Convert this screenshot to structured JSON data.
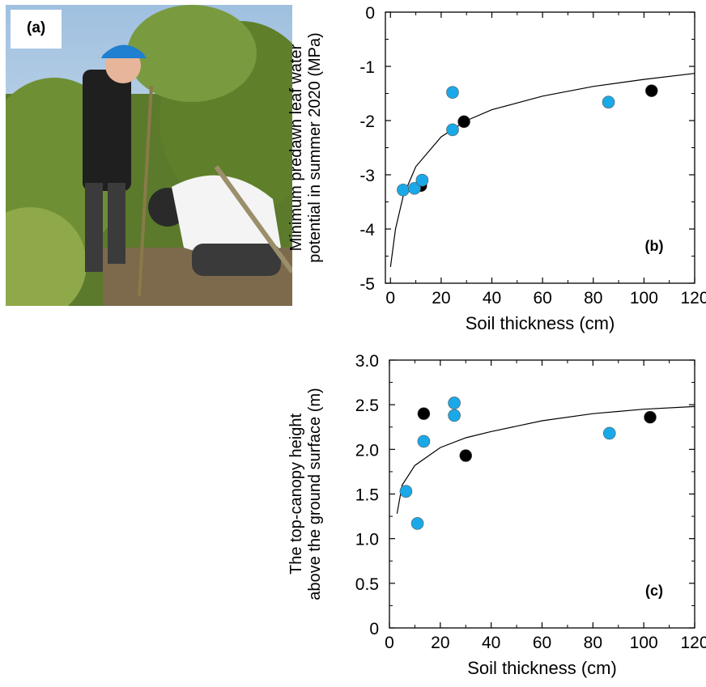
{
  "photo": {
    "label": "(a)"
  },
  "chart_data": [
    {
      "type": "scatter",
      "panel_label": "(b)",
      "xlabel": "Soil thickness (cm)",
      "ylabel": [
        "Minimum predawn leaf water",
        "potential in summer 2020 (MPa)"
      ],
      "xlim": [
        -2,
        120
      ],
      "ylim": [
        -5,
        0
      ],
      "xticks": [
        0,
        20,
        40,
        60,
        80,
        100,
        120
      ],
      "yticks": [
        0,
        -1,
        -2,
        -3,
        -4,
        -5
      ],
      "grid": false,
      "fit_curve": {
        "form": "logarithmic",
        "points": [
          [
            0,
            -4.7
          ],
          [
            2,
            -4.0
          ],
          [
            5,
            -3.4
          ],
          [
            10,
            -2.85
          ],
          [
            20,
            -2.3
          ],
          [
            30,
            -2.0
          ],
          [
            40,
            -1.8
          ],
          [
            60,
            -1.55
          ],
          [
            80,
            -1.37
          ],
          [
            100,
            -1.24
          ],
          [
            120,
            -1.13
          ]
        ]
      },
      "series": [
        {
          "color": "#000000",
          "points": [
            [
              12,
              -3.2
            ],
            [
              29,
              -2.02
            ],
            [
              103,
              -1.45
            ]
          ]
        },
        {
          "color": "#1aa9e8",
          "points": [
            [
              5,
              -3.28
            ],
            [
              9.5,
              -3.25
            ],
            [
              12.5,
              -3.1
            ],
            [
              24.5,
              -1.48
            ],
            [
              24.5,
              -2.17
            ],
            [
              86,
              -1.66
            ]
          ]
        }
      ]
    },
    {
      "type": "scatter",
      "panel_label": "(c)",
      "xlabel": "Soil thickness (cm)",
      "ylabel": [
        "The top-canopy height",
        "above the ground surface (m)"
      ],
      "xlim": [
        0,
        120
      ],
      "ylim": [
        0,
        3.0
      ],
      "xticks": [
        0,
        20,
        40,
        60,
        80,
        100,
        120
      ],
      "yticks": [
        "0",
        "0.5",
        "1.0",
        "1.5",
        "2.0",
        "2.5",
        "3.0"
      ],
      "grid": false,
      "fit_curve": {
        "form": "logarithmic",
        "points": [
          [
            3,
            1.28
          ],
          [
            5,
            1.6
          ],
          [
            10,
            1.82
          ],
          [
            20,
            2.02
          ],
          [
            30,
            2.13
          ],
          [
            40,
            2.2
          ],
          [
            60,
            2.32
          ],
          [
            80,
            2.4
          ],
          [
            100,
            2.45
          ],
          [
            120,
            2.48
          ]
        ]
      },
      "series": [
        {
          "color": "#000000",
          "points": [
            [
              13.5,
              2.4
            ],
            [
              30,
              1.93
            ],
            [
              102.5,
              2.36
            ]
          ]
        },
        {
          "color": "#1aa9e8",
          "points": [
            [
              6.5,
              1.53
            ],
            [
              11,
              1.17
            ],
            [
              13.5,
              2.09
            ],
            [
              25.5,
              2.52
            ],
            [
              25.5,
              2.38
            ],
            [
              86.5,
              2.18
            ]
          ]
        }
      ]
    }
  ]
}
